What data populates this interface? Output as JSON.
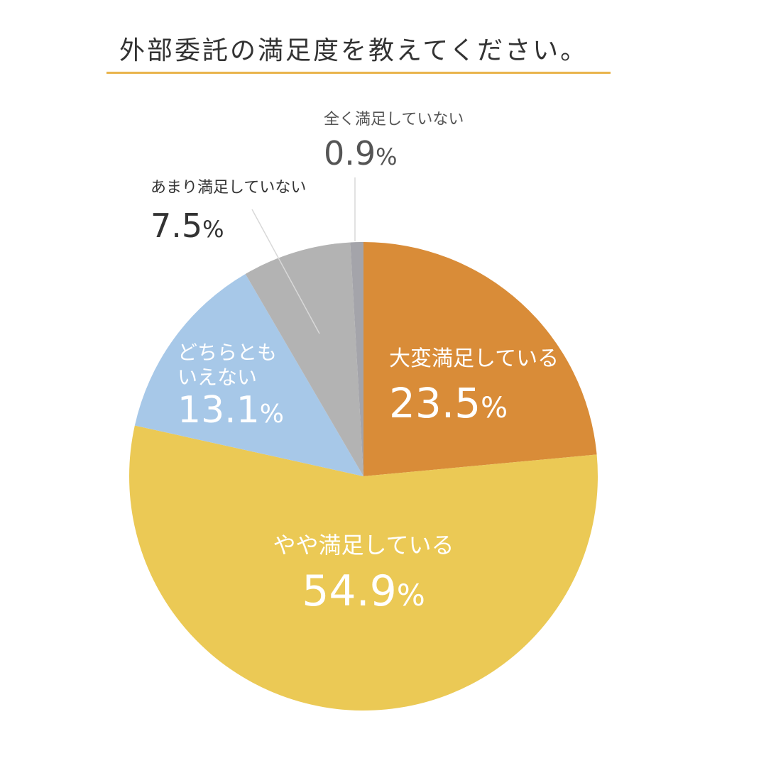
{
  "page": {
    "accent_color": "#E9B44C"
  },
  "chart_data": {
    "type": "pie",
    "title": "外部委託の満足度を教えてください。",
    "start_angle_deg": 0,
    "direction": "clockwise",
    "slices": [
      {
        "label": "大変満足している",
        "label_lines": [
          "大変満足している"
        ],
        "value": 23.5,
        "value_text": "23.5",
        "unit": "%",
        "color": "#D98C38"
      },
      {
        "label": "やや満足している",
        "label_lines": [
          "やや満足している"
        ],
        "value": 54.9,
        "value_text": "54.9",
        "unit": "%",
        "color": "#EBC955"
      },
      {
        "label": "どちらともいえない",
        "label_lines": [
          "どちらとも",
          "いえない"
        ],
        "value": 13.1,
        "value_text": "13.1",
        "unit": "%",
        "color": "#A7C8E8"
      },
      {
        "label": "あまり満足していない",
        "label_lines": [
          "あまり満足していない"
        ],
        "value": 7.5,
        "value_text": "7.5",
        "unit": "%",
        "color": "#B3B3B3"
      },
      {
        "label": "全く満足していない",
        "label_lines": [
          "全く満足していない"
        ],
        "value": 0.9,
        "value_text": "0.9",
        "unit": "%",
        "color": "#A4A4AA"
      }
    ]
  }
}
